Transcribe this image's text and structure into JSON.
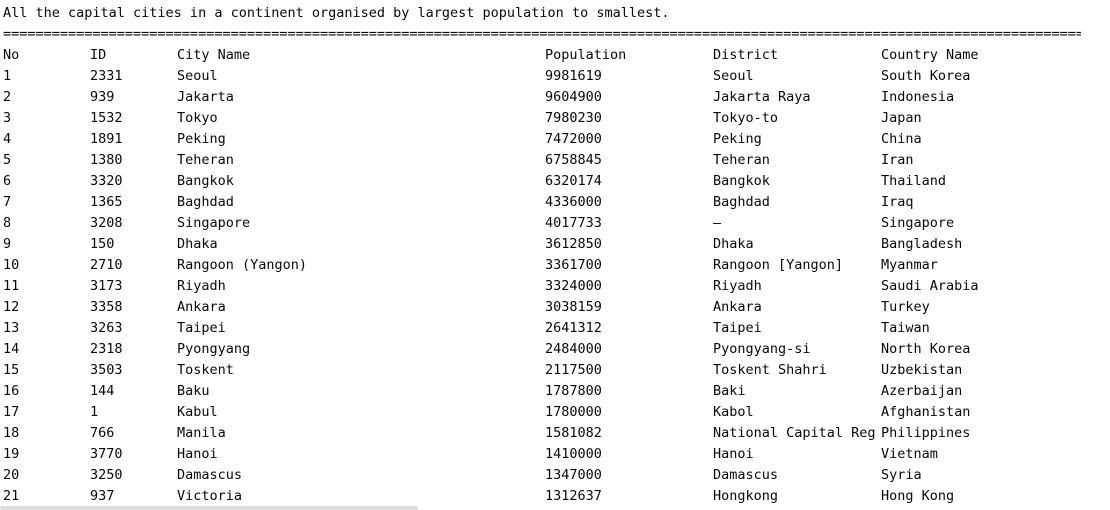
{
  "console": {
    "title": "All the capital cities in a continent organised by largest population to smallest.",
    "separator": "====================================================================================================================================================================="
  },
  "table": {
    "headers": {
      "no": "No",
      "id": "ID",
      "city": "City Name",
      "population": "Population",
      "district": "District",
      "country": "Country Name"
    },
    "rows": [
      {
        "no": "1",
        "id": "2331",
        "city": "Seoul",
        "population": "9981619",
        "district": "Seoul",
        "country": "South Korea"
      },
      {
        "no": "2",
        "id": "939",
        "city": "Jakarta",
        "population": "9604900",
        "district": "Jakarta Raya",
        "country": "Indonesia"
      },
      {
        "no": "3",
        "id": "1532",
        "city": "Tokyo",
        "population": "7980230",
        "district": "Tokyo-to",
        "country": "Japan"
      },
      {
        "no": "4",
        "id": "1891",
        "city": "Peking",
        "population": "7472000",
        "district": "Peking",
        "country": "China"
      },
      {
        "no": "5",
        "id": "1380",
        "city": "Teheran",
        "population": "6758845",
        "district": "Teheran",
        "country": "Iran"
      },
      {
        "no": "6",
        "id": "3320",
        "city": "Bangkok",
        "population": "6320174",
        "district": "Bangkok",
        "country": "Thailand"
      },
      {
        "no": "7",
        "id": "1365",
        "city": "Baghdad",
        "population": "4336000",
        "district": "Baghdad",
        "country": "Iraq"
      },
      {
        "no": "8",
        "id": "3208",
        "city": "Singapore",
        "population": "4017733",
        "district": "–",
        "country": "Singapore"
      },
      {
        "no": "9",
        "id": "150",
        "city": "Dhaka",
        "population": "3612850",
        "district": "Dhaka",
        "country": "Bangladesh"
      },
      {
        "no": "10",
        "id": "2710",
        "city": "Rangoon (Yangon)",
        "population": "3361700",
        "district": "Rangoon [Yangon]",
        "country": "Myanmar"
      },
      {
        "no": "11",
        "id": "3173",
        "city": "Riyadh",
        "population": "3324000",
        "district": "Riyadh",
        "country": "Saudi Arabia"
      },
      {
        "no": "12",
        "id": "3358",
        "city": "Ankara",
        "population": "3038159",
        "district": "Ankara",
        "country": "Turkey"
      },
      {
        "no": "13",
        "id": "3263",
        "city": "Taipei",
        "population": "2641312",
        "district": "Taipei",
        "country": "Taiwan"
      },
      {
        "no": "14",
        "id": "2318",
        "city": "Pyongyang",
        "population": "2484000",
        "district": "Pyongyang-si",
        "country": "North Korea"
      },
      {
        "no": "15",
        "id": "3503",
        "city": "Toskent",
        "population": "2117500",
        "district": "Toskent Shahri",
        "country": "Uzbekistan"
      },
      {
        "no": "16",
        "id": "144",
        "city": "Baku",
        "population": "1787800",
        "district": "Baki",
        "country": "Azerbaijan"
      },
      {
        "no": "17",
        "id": "1",
        "city": "Kabul",
        "population": "1780000",
        "district": "Kabol",
        "country": "Afghanistan"
      },
      {
        "no": "18",
        "id": "766",
        "city": "Manila",
        "population": "1581082",
        "district": "National Capital Reg",
        "country": "Philippines"
      },
      {
        "no": "19",
        "id": "3770",
        "city": "Hanoi",
        "population": "1410000",
        "district": "Hanoi",
        "country": "Vietnam"
      },
      {
        "no": "20",
        "id": "3250",
        "city": "Damascus",
        "population": "1347000",
        "district": "Damascus",
        "country": "Syria"
      },
      {
        "no": "21",
        "id": "937",
        "city": "Victoria",
        "population": "1312637",
        "district": "Hongkong",
        "country": "Hong Kong"
      }
    ]
  }
}
